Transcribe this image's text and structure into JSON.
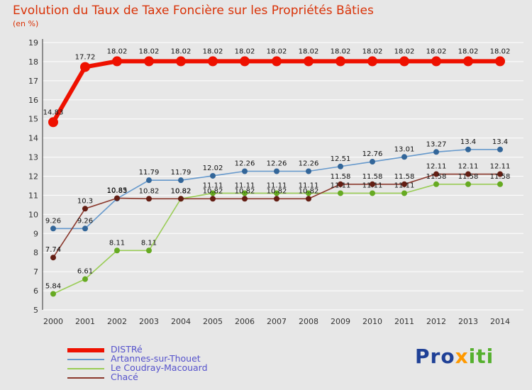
{
  "header": {
    "title": "Evolution du Taux de Taxe Foncière sur les Propriétés Bâties",
    "subtitle": "(en %)",
    "title_color": "#d93207"
  },
  "chart_data": {
    "type": "line",
    "x": [
      2000,
      2001,
      2002,
      2003,
      2004,
      2005,
      2006,
      2007,
      2008,
      2009,
      2010,
      2011,
      2012,
      2013,
      2014
    ],
    "ylim": [
      5,
      19
    ],
    "grid": true,
    "grid_color": "#ffffff",
    "axis_text_color": "#333333",
    "point_label_color": "#111111",
    "legend_position": "bottom-left",
    "series": [
      {
        "name": "DISTRé",
        "color": "#ee1100",
        "marker_color": "#ee1100",
        "line_width": 6,
        "marker_r": 7,
        "values": [
          14.83,
          17.72,
          18.02,
          18.02,
          18.02,
          18.02,
          18.02,
          18.02,
          18.02,
          18.02,
          18.02,
          18.02,
          18.02,
          18.02,
          18.02
        ]
      },
      {
        "name": "Artannes-sur-Thouet",
        "color": "#6699cc",
        "marker_color": "#336699",
        "line_width": 1.6,
        "marker_r": 4,
        "values": [
          9.26,
          9.26,
          10.83,
          11.79,
          11.79,
          12.02,
          12.26,
          12.26,
          12.26,
          12.51,
          12.76,
          13.01,
          13.27,
          13.4,
          13.4
        ]
      },
      {
        "name": "Le Coudray-Macouard",
        "color": "#99cc55",
        "marker_color": "#66aa22",
        "line_width": 1.6,
        "marker_r": 4,
        "values": [
          5.84,
          6.61,
          8.11,
          8.11,
          10.82,
          11.11,
          11.11,
          11.11,
          11.11,
          11.11,
          11.11,
          11.11,
          11.58,
          11.58,
          11.58
        ]
      },
      {
        "name": "Chacé",
        "color": "#8a382c",
        "marker_color": "#641e14",
        "line_width": 1.6,
        "marker_r": 4,
        "values": [
          7.74,
          10.3,
          10.85,
          10.82,
          10.82,
          10.82,
          10.82,
          10.82,
          10.82,
          11.58,
          11.58,
          11.58,
          12.11,
          12.11,
          12.11
        ]
      }
    ]
  },
  "legend": {
    "items": [
      {
        "label": "DISTRé",
        "color": "#ee1100",
        "thick": true
      },
      {
        "label": "Artannes-sur-Thouet",
        "color": "#6699cc",
        "thick": false
      },
      {
        "label": "Le Coudray-Macouard",
        "color": "#99cc55",
        "thick": false
      },
      {
        "label": "Chacé",
        "color": "#8a382c",
        "thick": false
      }
    ]
  },
  "logo": {
    "parts": [
      {
        "text": "Pro",
        "color": "#1f4096"
      },
      {
        "text": "x",
        "color": "#ff9900"
      },
      {
        "text": "iti",
        "color": "#55b02e"
      }
    ]
  }
}
